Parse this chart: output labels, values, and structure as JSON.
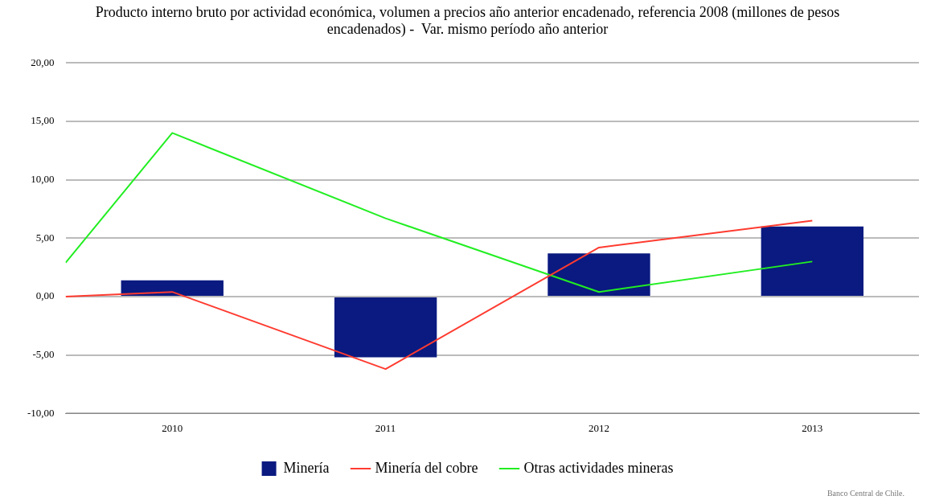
{
  "chart_data": {
    "type": "bar",
    "title": "Producto interno bruto por actividad económica, volumen a precios año anterior encadenado, referencia 2008 (millones de pesos encadenados) -  Var. mismo período año anterior",
    "x": [
      2010,
      2011,
      2012,
      2013
    ],
    "series": [
      {
        "name": "Minería",
        "color": "#0a1a80",
        "values": [
          1.4,
          -5.2,
          3.7,
          6.0
        ]
      },
      {
        "name": "Minería del cobre",
        "type": "line",
        "color": "#ff3b30",
        "x": [
          2009.5,
          2010,
          2011,
          2012,
          2013
        ],
        "values": [
          0.0,
          0.4,
          -6.2,
          4.2,
          6.5
        ]
      },
      {
        "name": "Otras actividades mineras",
        "type": "line",
        "color": "#22ee22",
        "x": [
          2009.5,
          2010,
          2011,
          2012,
          2013
        ],
        "values": [
          2.9,
          14.0,
          6.7,
          0.4,
          3.0
        ]
      }
    ],
    "xlim": [
      2009.5,
      2013.5
    ],
    "xticks": [
      2010,
      2011,
      2012,
      2013
    ],
    "ylim": [
      -10,
      20
    ],
    "yticks": [
      {
        "value": -10,
        "label": "-10,00"
      },
      {
        "value": -5,
        "label": "-5,00"
      },
      {
        "value": 0,
        "label": "0,00"
      },
      {
        "value": 5,
        "label": "5,00"
      },
      {
        "value": 10,
        "label": "10,00"
      },
      {
        "value": 15,
        "label": "15,00"
      },
      {
        "value": 20,
        "label": "20,00"
      }
    ],
    "grid": "y",
    "legend": "bottom",
    "marker": "none",
    "annotations": [
      "Banco Central de Chile."
    ]
  }
}
